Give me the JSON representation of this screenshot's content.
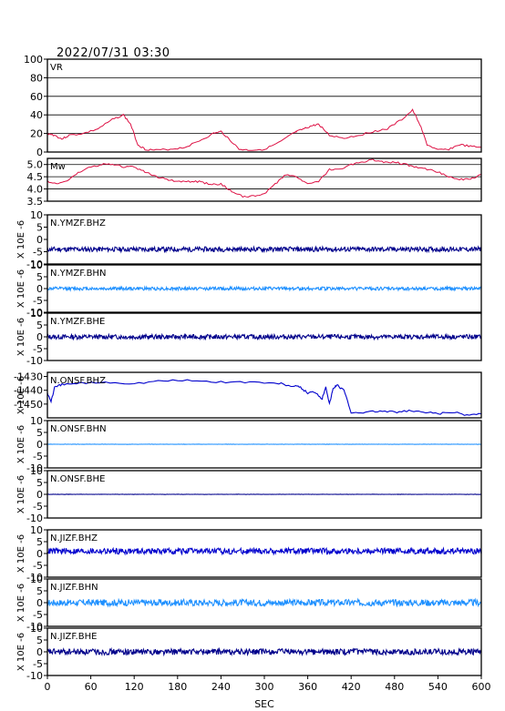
{
  "header": {
    "timestamp": "2022/07/31 03:30"
  },
  "xaxis": {
    "label": "SEC",
    "ticks": [
      0,
      60,
      120,
      180,
      240,
      300,
      360,
      420,
      480,
      540,
      600
    ],
    "xlim": [
      0,
      600
    ]
  },
  "colors": {
    "frame": "#000000",
    "vr": "#dd1144",
    "mw": "#dd1144",
    "wave_dark": "#00008b",
    "wave_blue": "#1e90ff",
    "wave_mid": "#0000cd"
  },
  "chart_data": [
    {
      "type": "line",
      "id": "vr",
      "title": "VR",
      "ylabel": "",
      "ylim": [
        0,
        100
      ],
      "yticks": [
        0,
        20,
        40,
        60,
        80,
        100
      ],
      "grid": true,
      "color": "vr",
      "x": [
        0,
        10,
        20,
        30,
        50,
        70,
        90,
        105,
        115,
        125,
        135,
        150,
        170,
        190,
        210,
        230,
        240,
        250,
        265,
        280,
        300,
        320,
        340,
        345,
        355,
        365,
        375,
        390,
        410,
        430,
        450,
        470,
        490,
        505,
        515,
        525,
        540,
        555,
        570,
        585,
        600
      ],
      "values": [
        20,
        18,
        14,
        18,
        20,
        25,
        35,
        40,
        30,
        8,
        3,
        2,
        3,
        5,
        12,
        20,
        22,
        15,
        3,
        2,
        3,
        10,
        20,
        22,
        25,
        28,
        30,
        18,
        15,
        18,
        22,
        25,
        35,
        45,
        30,
        8,
        2,
        3,
        8,
        6,
        5
      ]
    },
    {
      "type": "line",
      "id": "mw",
      "title": "Mw",
      "ylabel": "",
      "ylim": [
        3.5,
        5.25
      ],
      "yticks": [
        3.5,
        4.0,
        4.5,
        5.0
      ],
      "ytick_labels": [
        "3.5",
        "4.0",
        "4.5",
        "5.0"
      ],
      "grid": true,
      "color": "mw",
      "x": [
        0,
        15,
        30,
        45,
        60,
        75,
        90,
        105,
        120,
        135,
        150,
        165,
        180,
        195,
        210,
        225,
        240,
        255,
        270,
        285,
        300,
        315,
        330,
        345,
        360,
        375,
        390,
        405,
        420,
        435,
        450,
        465,
        480,
        495,
        510,
        525,
        540,
        555,
        570,
        585,
        600
      ],
      "values": [
        4.3,
        4.2,
        4.4,
        4.7,
        4.9,
        5.0,
        5.0,
        4.9,
        4.9,
        4.7,
        4.5,
        4.4,
        4.3,
        4.3,
        4.3,
        4.2,
        4.2,
        3.9,
        3.7,
        3.7,
        3.8,
        4.2,
        4.6,
        4.5,
        4.2,
        4.3,
        4.8,
        4.8,
        5.0,
        5.1,
        5.2,
        5.1,
        5.1,
        5.0,
        4.9,
        4.8,
        4.7,
        4.5,
        4.4,
        4.4,
        4.6
      ]
    },
    {
      "type": "line",
      "id": "ymzf-bhz",
      "title": "N.YMZF.BHZ",
      "ylabel": "X 10E -6",
      "ylim": [
        -10,
        10
      ],
      "yticks": [
        -10,
        -5,
        0,
        5,
        10
      ],
      "color": "wave_dark",
      "baseline": -4,
      "amplitude": 0.7,
      "seed": 11
    },
    {
      "type": "line",
      "id": "ymzf-bhn",
      "title": "N.YMZF.BHN",
      "ylabel": "X 10E -6",
      "ylim": [
        -10,
        10
      ],
      "yticks": [
        -10,
        -5,
        0,
        5,
        10
      ],
      "color": "wave_blue",
      "baseline": 0,
      "amplitude": 0.5,
      "seed": 12
    },
    {
      "type": "line",
      "id": "ymzf-bhe",
      "title": "N.YMZF.BHE",
      "ylabel": "X 10E -6",
      "ylim": [
        -10,
        10
      ],
      "yticks": [
        -10,
        -5,
        0,
        5,
        10
      ],
      "color": "wave_dark",
      "baseline": 0,
      "amplitude": 0.7,
      "seed": 13
    },
    {
      "type": "line",
      "id": "onsf-bhz",
      "title": "N.ONSF.BHZ",
      "ylabel": "X 10E -6",
      "ylim": [
        -1460,
        -1427
      ],
      "yticks": [
        -1450,
        -1440,
        -1430
      ],
      "color": "wave_mid",
      "x": [
        0,
        5,
        10,
        20,
        40,
        80,
        120,
        160,
        200,
        240,
        280,
        320,
        340,
        350,
        360,
        370,
        380,
        385,
        390,
        395,
        400,
        410,
        420,
        440,
        460,
        480,
        500,
        520,
        540,
        560,
        580,
        600
      ],
      "values": [
        -1442,
        -1448,
        -1438,
        -1436,
        -1435,
        -1434,
        -1435,
        -1433,
        -1433,
        -1434,
        -1434,
        -1435,
        -1437,
        -1438,
        -1442,
        -1441,
        -1446,
        -1437,
        -1450,
        -1439,
        -1436,
        -1440,
        -1456,
        -1456,
        -1455,
        -1456,
        -1455,
        -1456,
        -1457,
        -1456,
        -1458,
        -1457
      ]
    },
    {
      "type": "line",
      "id": "onsf-bhn",
      "title": "N.ONSF.BHN",
      "ylabel": "X 10E -6",
      "ylim": [
        -10,
        10
      ],
      "yticks": [
        -10,
        -5,
        0,
        5,
        10
      ],
      "color": "wave_blue",
      "baseline": 0,
      "amplitude": 0.05,
      "seed": 14
    },
    {
      "type": "line",
      "id": "onsf-bhe",
      "title": "N.ONSF.BHE",
      "ylabel": "X 10E -6",
      "ylim": [
        -10,
        10
      ],
      "yticks": [
        -10,
        -5,
        0,
        5,
        10
      ],
      "color": "wave_dark",
      "baseline": 0,
      "amplitude": 0.05,
      "seed": 15
    },
    {
      "type": "line",
      "id": "jizf-bhz",
      "title": "N.JIZF.BHZ",
      "ylabel": "X 10E -6",
      "ylim": [
        -10,
        10
      ],
      "yticks": [
        -10,
        -5,
        0,
        5,
        10
      ],
      "color": "wave_mid",
      "baseline": 1,
      "amplitude": 0.9,
      "seed": 16
    },
    {
      "type": "line",
      "id": "jizf-bhn",
      "title": "N.JIZF.BHN",
      "ylabel": "X 10E -6",
      "ylim": [
        -10,
        10
      ],
      "yticks": [
        -10,
        -5,
        0,
        5,
        10
      ],
      "color": "wave_blue",
      "baseline": 0,
      "amplitude": 1.0,
      "seed": 17
    },
    {
      "type": "line",
      "id": "jizf-bhe",
      "title": "N.JIZF.BHE",
      "ylabel": "X 10E -6",
      "ylim": [
        -10,
        10
      ],
      "yticks": [
        -10,
        -5,
        0,
        5,
        10
      ],
      "color": "wave_dark",
      "baseline": 0,
      "amplitude": 0.9,
      "seed": 18
    }
  ]
}
